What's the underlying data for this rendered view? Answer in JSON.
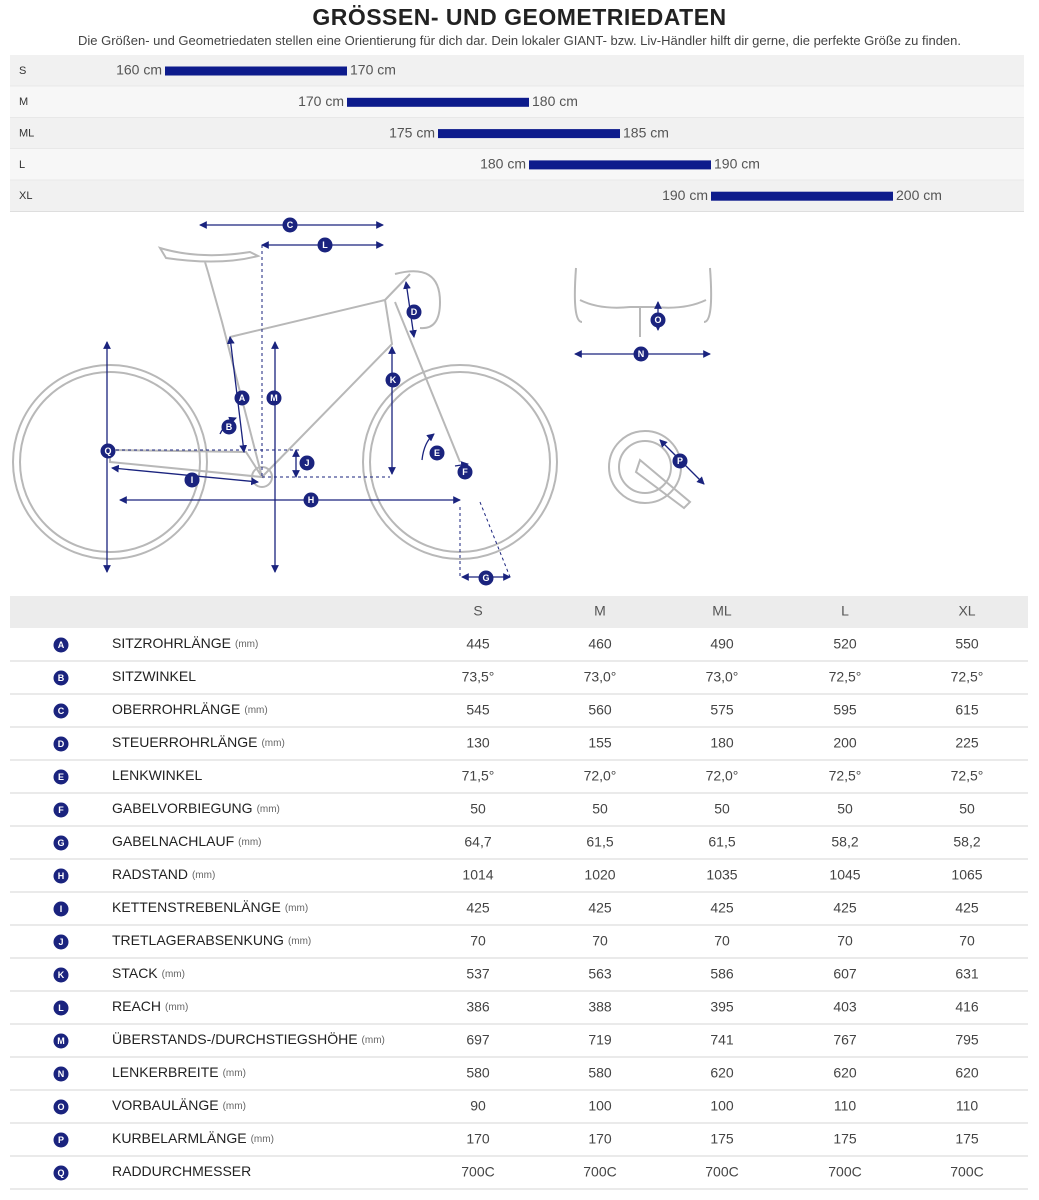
{
  "header": {
    "title": "GRÖSSEN- UND GEOMETRIEDATEN",
    "subtitle": "Die Größen- und Geometriedaten stellen eine Orientierung für dich dar. Dein lokaler GIANT- bzw. Liv-Händler hilft dir gerne, die perfekte Größe zu finden."
  },
  "size_ranges": {
    "color": "#0d1b8c",
    "rows": [
      {
        "name": "S",
        "from": 160,
        "to": 170,
        "from_label": "160 cm",
        "to_label": "170 cm"
      },
      {
        "name": "M",
        "from": 170,
        "to": 180,
        "from_label": "170 cm",
        "to_label": "180 cm"
      },
      {
        "name": "ML",
        "from": 175,
        "to": 185,
        "from_label": "175 cm",
        "to_label": "185 cm"
      },
      {
        "name": "L",
        "from": 180,
        "to": 190,
        "from_label": "180 cm",
        "to_label": "190 cm"
      },
      {
        "name": "XL",
        "from": 190,
        "to": 200,
        "from_label": "190 cm",
        "to_label": "200 cm"
      }
    ]
  },
  "table": {
    "columns": [
      "S",
      "M",
      "ML",
      "L",
      "XL"
    ],
    "rows": [
      {
        "letter": "A",
        "name": "SITZROHRLÄNGE",
        "unit": "(mm)",
        "values": [
          "445",
          "460",
          "490",
          "520",
          "550"
        ]
      },
      {
        "letter": "B",
        "name": "SITZWINKEL",
        "values": [
          "73,5°",
          "73,0°",
          "73,0°",
          "72,5°",
          "72,5°"
        ]
      },
      {
        "letter": "C",
        "name": "OBERROHRLÄNGE",
        "unit": "(mm)",
        "values": [
          "545",
          "560",
          "575",
          "595",
          "615"
        ]
      },
      {
        "letter": "D",
        "name": "STEUERROHRLÄNGE",
        "unit": "(mm)",
        "values": [
          "130",
          "155",
          "180",
          "200",
          "225"
        ]
      },
      {
        "letter": "E",
        "name": "LENKWINKEL",
        "values": [
          "71,5°",
          "72,0°",
          "72,0°",
          "72,5°",
          "72,5°"
        ]
      },
      {
        "letter": "F",
        "name": "GABELVORBIEGUNG",
        "unit": "(mm)",
        "values": [
          "50",
          "50",
          "50",
          "50",
          "50"
        ]
      },
      {
        "letter": "G",
        "name": "GABELNACHLAUF",
        "unit": "(mm)",
        "values": [
          "64,7",
          "61,5",
          "61,5",
          "58,2",
          "58,2"
        ]
      },
      {
        "letter": "H",
        "name": "RADSTAND",
        "unit": "(mm)",
        "values": [
          "1014",
          "1020",
          "1035",
          "1045",
          "1065"
        ]
      },
      {
        "letter": "I",
        "name": "KETTENSTREBENLÄNGE",
        "unit": "(mm)",
        "values": [
          "425",
          "425",
          "425",
          "425",
          "425"
        ]
      },
      {
        "letter": "J",
        "name": "TRETLAGERABSENKUNG",
        "unit": "(mm)",
        "values": [
          "70",
          "70",
          "70",
          "70",
          "70"
        ]
      },
      {
        "letter": "K",
        "name": "STACK",
        "unit": "(mm)",
        "values": [
          "537",
          "563",
          "586",
          "607",
          "631"
        ]
      },
      {
        "letter": "L",
        "name": "REACH",
        "unit": "(mm)",
        "values": [
          "386",
          "388",
          "395",
          "403",
          "416"
        ]
      },
      {
        "letter": "M",
        "name": "ÜBERSTANDS-/DURCHSTIEGSHÖHE",
        "unit": "(mm)",
        "values": [
          "697",
          "719",
          "741",
          "767",
          "795"
        ]
      },
      {
        "letter": "N",
        "name": "LENKERBREITE",
        "unit": "(mm)",
        "values": [
          "580",
          "580",
          "620",
          "620",
          "620"
        ]
      },
      {
        "letter": "O",
        "name": "VORBAULÄNGE",
        "unit": "(mm)",
        "values": [
          "90",
          "100",
          "100",
          "110",
          "110"
        ]
      },
      {
        "letter": "P",
        "name": "KURBELARMLÄNGE",
        "unit": "(mm)",
        "values": [
          "170",
          "170",
          "175",
          "175",
          "175"
        ]
      },
      {
        "letter": "Q",
        "name": "RADDURCHMESSER",
        "values": [
          "700C",
          "700C",
          "700C",
          "700C",
          "700C"
        ]
      }
    ]
  }
}
